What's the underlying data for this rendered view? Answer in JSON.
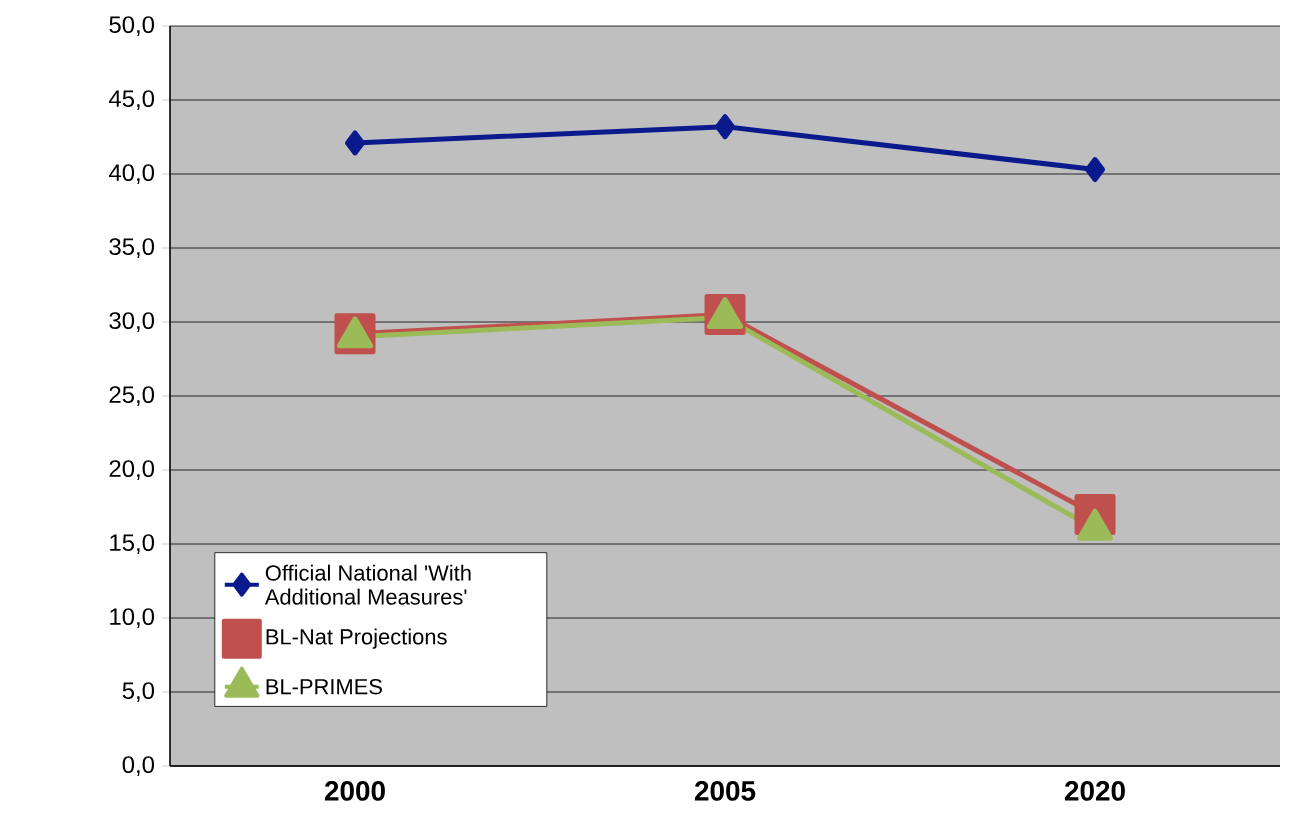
{
  "chart_data": {
    "type": "line",
    "categories": [
      "2000",
      "2005",
      "2020"
    ],
    "series": [
      {
        "name": "Official National 'With Additional Measures'",
        "color": "#0a1a8c",
        "marker": "diamond",
        "values": [
          42.1,
          43.2,
          40.3
        ]
      },
      {
        "name": "BL-Nat Projections",
        "color": "#c0504d",
        "marker": "square",
        "values": [
          29.2,
          30.5,
          17.0
        ]
      },
      {
        "name": "BL-PRIMES",
        "color": "#9bbb59",
        "marker": "triangle",
        "values": [
          29.0,
          30.3,
          16.0
        ]
      }
    ],
    "ylim": [
      0,
      50
    ],
    "yticks": [
      {
        "value": 0,
        "label": "0,0"
      },
      {
        "value": 5,
        "label": "5,0"
      },
      {
        "value": 10,
        "label": "10,0"
      },
      {
        "value": 15,
        "label": "15,0"
      },
      {
        "value": 20,
        "label": "20,0"
      },
      {
        "value": 25,
        "label": "25,0"
      },
      {
        "value": 30,
        "label": "30,0"
      },
      {
        "value": 35,
        "label": "35,0"
      },
      {
        "value": 40,
        "label": "40,0"
      },
      {
        "value": 45,
        "label": "45,0"
      },
      {
        "value": 50,
        "label": "50,0"
      }
    ],
    "grid": "y",
    "legend": "bottom left"
  }
}
